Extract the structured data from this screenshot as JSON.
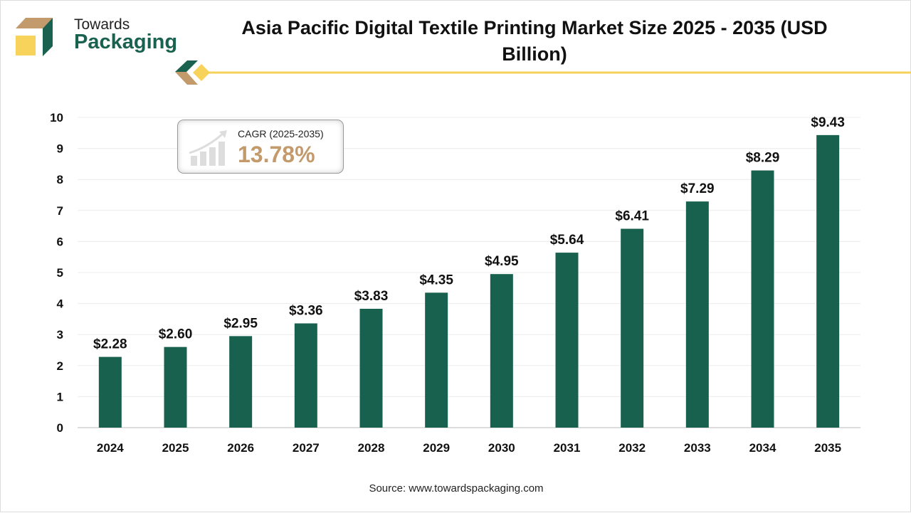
{
  "header": {
    "logo_line1": "Towards",
    "logo_line2": "Packaging",
    "title": "Asia Pacific Digital Textile Printing Market Size 2025 - 2035 (USD Billion)"
  },
  "cagr": {
    "label": "CAGR (2025-2035)",
    "value": "13.78%"
  },
  "source": "Source: www.towardspackaging.com",
  "colors": {
    "bar": "#18614f",
    "accent": "#f5d25a",
    "brown": "#c39a6b"
  },
  "chart_data": {
    "type": "bar",
    "title": "Asia Pacific Digital Textile Printing Market Size 2025 - 2035 (USD Billion)",
    "categories": [
      "2024",
      "2025",
      "2026",
      "2027",
      "2028",
      "2029",
      "2030",
      "2031",
      "2032",
      "2033",
      "2034",
      "2035"
    ],
    "values": [
      2.28,
      2.6,
      2.95,
      3.36,
      3.83,
      4.35,
      4.95,
      5.64,
      6.41,
      7.29,
      8.29,
      9.43
    ],
    "data_labels": [
      "$2.28",
      "$2.60",
      "$2.95",
      "$3.36",
      "$3.83",
      "$4.35",
      "$4.95",
      "$5.64",
      "$6.41",
      "$7.29",
      "$8.29",
      "$9.43"
    ],
    "yticks": [
      "0",
      "1",
      "2",
      "3",
      "4",
      "5",
      "6",
      "7",
      "8",
      "9",
      "10"
    ],
    "ylim": [
      0,
      10
    ],
    "xlabel": "",
    "ylabel": "",
    "grid": true
  }
}
